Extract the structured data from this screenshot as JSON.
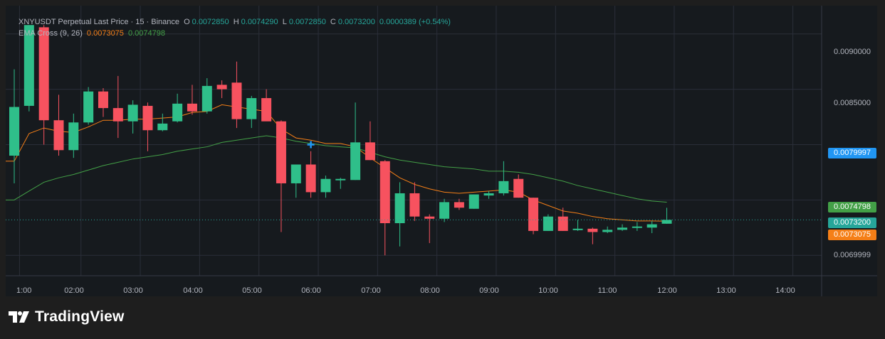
{
  "legend": {
    "symbol_line": "XNYUSDT Perpetual Last Price · 15 · Binance",
    "open_label": "O",
    "open": "0.0072850",
    "high_label": "H",
    "high": "0.0074290",
    "low_label": "L",
    "low": "0.0072850",
    "close_label": "C",
    "close": "0.0073200",
    "change": "0.0000389 (+0.54%)",
    "indicator_name": "EMA Cross (9, 26)",
    "ema_fast": "0.0073075",
    "ema_slow": "0.0074798"
  },
  "price_axis": {
    "ticks": [
      "0.0090000",
      "0.0085000",
      "0.0069999"
    ],
    "tags": {
      "crosshair": "0.0079997",
      "ema_slow": "0.0074798",
      "last_price": "0.0073200",
      "ema_fast": "0.0073075"
    }
  },
  "time_axis": {
    "labels": [
      "1:00",
      "02:00",
      "03:00",
      "04:00",
      "05:00",
      "06:00",
      "07:00",
      "08:00",
      "09:00",
      "10:00",
      "11:00",
      "12:00",
      "13:00",
      "14:00"
    ]
  },
  "branding": {
    "logo_text": "TradingView"
  },
  "colors": {
    "up": "#26a69a",
    "up_body": "#2fbf8a",
    "down": "#f23645",
    "down_body": "#f7525f",
    "ema_fast": "#f57f17",
    "ema_slow": "#43a047",
    "crosshair_tag": "#2196f3",
    "grid": "#2a2e39"
  },
  "chart_data": {
    "type": "candlestick",
    "timeframe": "15",
    "x_start": "00:45",
    "candles": [
      {
        "o": 0.0079,
        "h": 0.00868,
        "l": 0.00765,
        "c": 0.00834
      },
      {
        "o": 0.00835,
        "h": 0.00908,
        "l": 0.0083,
        "c": 0.00908
      },
      {
        "o": 0.00906,
        "h": 0.00908,
        "l": 0.008,
        "c": 0.00822
      },
      {
        "o": 0.00822,
        "h": 0.00845,
        "l": 0.0079,
        "c": 0.00795
      },
      {
        "o": 0.00795,
        "h": 0.00828,
        "l": 0.00788,
        "c": 0.0082
      },
      {
        "o": 0.0082,
        "h": 0.00852,
        "l": 0.00818,
        "c": 0.00848
      },
      {
        "o": 0.00848,
        "h": 0.00851,
        "l": 0.00825,
        "c": 0.00833
      },
      {
        "o": 0.00833,
        "h": 0.00862,
        "l": 0.00806,
        "c": 0.00821
      },
      {
        "o": 0.00821,
        "h": 0.0084,
        "l": 0.0081,
        "c": 0.00836
      },
      {
        "o": 0.00835,
        "h": 0.00838,
        "l": 0.00794,
        "c": 0.00813
      },
      {
        "o": 0.00813,
        "h": 0.00828,
        "l": 0.00812,
        "c": 0.00819
      },
      {
        "o": 0.00821,
        "h": 0.00846,
        "l": 0.0082,
        "c": 0.00837
      },
      {
        "o": 0.00837,
        "h": 0.00854,
        "l": 0.00827,
        "c": 0.0083
      },
      {
        "o": 0.0083,
        "h": 0.0086,
        "l": 0.00828,
        "c": 0.00853
      },
      {
        "o": 0.00854,
        "h": 0.00858,
        "l": 0.00842,
        "c": 0.0085
      },
      {
        "o": 0.00856,
        "h": 0.00875,
        "l": 0.00815,
        "c": 0.00823
      },
      {
        "o": 0.00823,
        "h": 0.00844,
        "l": 0.00815,
        "c": 0.00842
      },
      {
        "o": 0.00842,
        "h": 0.0085,
        "l": 0.00822,
        "c": 0.00821
      },
      {
        "o": 0.00821,
        "h": 0.00822,
        "l": 0.00721,
        "c": 0.00765
      },
      {
        "o": 0.00765,
        "h": 0.00782,
        "l": 0.00752,
        "c": 0.00782
      },
      {
        "o": 0.00782,
        "h": 0.00794,
        "l": 0.00752,
        "c": 0.00757
      },
      {
        "o": 0.00757,
        "h": 0.00772,
        "l": 0.00752,
        "c": 0.00769
      },
      {
        "o": 0.00769,
        "h": 0.0077,
        "l": 0.0076,
        "c": 0.00769
      },
      {
        "o": 0.00768,
        "h": 0.00838,
        "l": 0.00768,
        "c": 0.00802
      },
      {
        "o": 0.00802,
        "h": 0.00821,
        "l": 0.00786,
        "c": 0.00786
      },
      {
        "o": 0.00785,
        "h": 0.00786,
        "l": 0.007,
        "c": 0.00729
      },
      {
        "o": 0.00729,
        "h": 0.00766,
        "l": 0.00708,
        "c": 0.00756
      },
      {
        "o": 0.00756,
        "h": 0.00766,
        "l": 0.00731,
        "c": 0.00735
      },
      {
        "o": 0.00735,
        "h": 0.00737,
        "l": 0.00711,
        "c": 0.00733
      },
      {
        "o": 0.00733,
        "h": 0.00751,
        "l": 0.0073,
        "c": 0.00748
      },
      {
        "o": 0.00748,
        "h": 0.00751,
        "l": 0.00741,
        "c": 0.00743
      },
      {
        "o": 0.00742,
        "h": 0.00755,
        "l": 0.00742,
        "c": 0.00755
      },
      {
        "o": 0.00754,
        "h": 0.00758,
        "l": 0.00751,
        "c": 0.00756
      },
      {
        "o": 0.00756,
        "h": 0.00785,
        "l": 0.00754,
        "c": 0.00767
      },
      {
        "o": 0.00769,
        "h": 0.00773,
        "l": 0.00752,
        "c": 0.00752
      },
      {
        "o": 0.00752,
        "h": 0.00752,
        "l": 0.00719,
        "c": 0.00722
      },
      {
        "o": 0.00722,
        "h": 0.00737,
        "l": 0.00722,
        "c": 0.00735
      },
      {
        "o": 0.00735,
        "h": 0.00743,
        "l": 0.00722,
        "c": 0.00722
      },
      {
        "o": 0.00723,
        "h": 0.00732,
        "l": 0.00722,
        "c": 0.00724
      },
      {
        "o": 0.00724,
        "h": 0.00725,
        "l": 0.0071,
        "c": 0.00721
      },
      {
        "o": 0.00721,
        "h": 0.00726,
        "l": 0.0072,
        "c": 0.00723
      },
      {
        "o": 0.00723,
        "h": 0.00728,
        "l": 0.00722,
        "c": 0.00725
      },
      {
        "o": 0.00725,
        "h": 0.0073,
        "l": 0.00722,
        "c": 0.00726
      },
      {
        "o": 0.00725,
        "h": 0.00731,
        "l": 0.0072,
        "c": 0.00728
      },
      {
        "o": 0.007285,
        "h": 0.007429,
        "l": 0.007285,
        "c": 0.00732
      }
    ],
    "ema_fast": [
      0.00785,
      0.0081,
      0.00815,
      0.00812,
      0.00811,
      0.00816,
      0.00822,
      0.00822,
      0.00823,
      0.00823,
      0.00824,
      0.00825,
      0.00829,
      0.0083,
      0.00836,
      0.00834,
      0.00832,
      0.0083,
      0.00814,
      0.00806,
      0.00804,
      0.00801,
      0.00801,
      0.00798,
      0.00788,
      0.00779,
      0.0077,
      0.00764,
      0.0076,
      0.00757,
      0.00756,
      0.00757,
      0.00758,
      0.00759,
      0.00757,
      0.0075,
      0.00745,
      0.0074,
      0.00738,
      0.00735,
      0.00733,
      0.00732,
      0.00731,
      0.00731,
      0.0073075
    ],
    "ema_slow": [
      0.0075,
      0.00758,
      0.00766,
      0.0077,
      0.00773,
      0.00777,
      0.00781,
      0.00784,
      0.00787,
      0.00789,
      0.00791,
      0.00794,
      0.00796,
      0.00798,
      0.00802,
      0.00804,
      0.00806,
      0.00808,
      0.00806,
      0.00803,
      0.00801,
      0.00799,
      0.00798,
      0.00797,
      0.00793,
      0.00789,
      0.00786,
      0.00784,
      0.00782,
      0.0078,
      0.00779,
      0.00778,
      0.00776,
      0.00776,
      0.00775,
      0.00773,
      0.0077,
      0.00767,
      0.00763,
      0.0076,
      0.00757,
      0.00754,
      0.00751,
      0.00749,
      0.0074798
    ],
    "ylim": [
      0.006815,
      0.009255
    ],
    "price_ticks": [
      0.009,
      0.0085,
      0.008,
      0.0075,
      0.0069999
    ],
    "last_price": 0.00732,
    "crosshair_price": 0.0079997,
    "grid": true
  }
}
